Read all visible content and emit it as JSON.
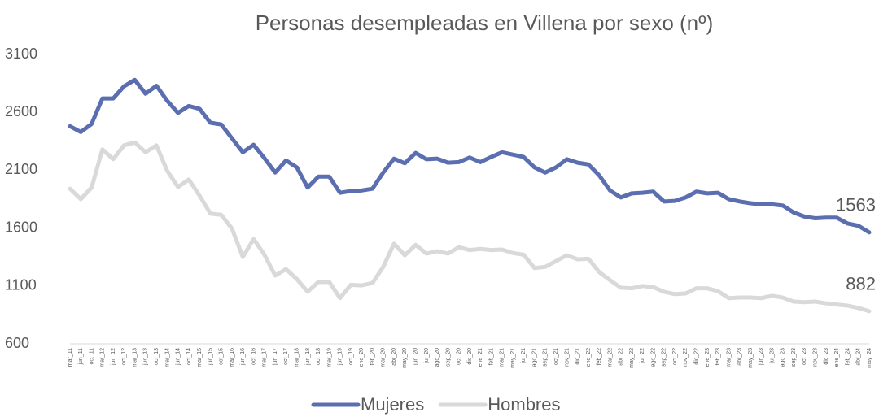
{
  "chart_data": {
    "type": "line",
    "title": "Personas desempleadas en Villena por sexo (nº)",
    "categories": [
      "mar_11",
      "jun_11",
      "oct_11",
      "mar_12",
      "jun_12",
      "oct_12",
      "mar_13",
      "jun_13",
      "oct_13",
      "mar_14",
      "jun_14",
      "oct_14",
      "mar_15",
      "jun_15",
      "oct_15",
      "mar_16",
      "jun_16",
      "oct_16",
      "mar_17",
      "jun_17",
      "oct_17",
      "mar_18",
      "jun_18",
      "oct_18",
      "mar_19",
      "jun_19",
      "oct_19",
      "ene_20",
      "feb_20",
      "mar_20",
      "abr_20",
      "may_20",
      "jun_20",
      "jul_20",
      "ago_20",
      "sep_20",
      "oct_20",
      "dic_20",
      "ene_21",
      "feb_21",
      "mar_21",
      "may_21",
      "jul_21",
      "ago_21",
      "sep_21",
      "oct_21",
      "nov_21",
      "dic_21",
      "ene_22",
      "feb_22",
      "mar_22",
      "abr_22",
      "may_22",
      "jul_22",
      "ago_22",
      "sep_22",
      "oct_22",
      "nov_22",
      "dic_22",
      "ene_23",
      "feb_23",
      "mar_23",
      "abr_23",
      "may_23",
      "jun_23",
      "jul_23",
      "ago_23",
      "sep_23",
      "oct_23",
      "nov_23",
      "dic_23",
      "ene_24",
      "feb_24",
      "abr_24",
      "may_24"
    ],
    "series": [
      {
        "name": "Mujeres",
        "color": "#5b6fb0",
        "values": [
          2480,
          2430,
          2500,
          2720,
          2720,
          2825,
          2880,
          2760,
          2830,
          2700,
          2595,
          2655,
          2630,
          2510,
          2495,
          2375,
          2255,
          2320,
          2205,
          2080,
          2185,
          2125,
          1950,
          2045,
          2045,
          1905,
          1920,
          1925,
          1940,
          2080,
          2200,
          2160,
          2250,
          2195,
          2200,
          2165,
          2170,
          2210,
          2170,
          2215,
          2255,
          2235,
          2215,
          2125,
          2080,
          2125,
          2195,
          2165,
          2150,
          2055,
          1925,
          1865,
          1900,
          1905,
          1915,
          1830,
          1835,
          1865,
          1915,
          1900,
          1905,
          1850,
          1830,
          1815,
          1805,
          1805,
          1795,
          1735,
          1700,
          1685,
          1690,
          1690,
          1640,
          1620,
          1563
        ]
      },
      {
        "name": "Hombres",
        "color": "#d9d9d9",
        "values": [
          1940,
          1850,
          1950,
          2280,
          2195,
          2315,
          2340,
          2255,
          2315,
          2095,
          1955,
          2020,
          1880,
          1725,
          1715,
          1595,
          1350,
          1505,
          1370,
          1190,
          1245,
          1160,
          1050,
          1135,
          1135,
          995,
          1110,
          1105,
          1125,
          1265,
          1465,
          1365,
          1455,
          1380,
          1400,
          1380,
          1435,
          1410,
          1420,
          1410,
          1415,
          1385,
          1370,
          1255,
          1265,
          1315,
          1365,
          1330,
          1335,
          1220,
          1150,
          1085,
          1080,
          1100,
          1090,
          1050,
          1030,
          1035,
          1080,
          1080,
          1055,
          995,
          1000,
          1000,
          995,
          1015,
          1000,
          965,
          960,
          965,
          950,
          940,
          930,
          910,
          882
        ]
      }
    ],
    "ylim": [
      600,
      3100
    ],
    "yticks": [
      600,
      1100,
      1600,
      2100,
      2600,
      3100
    ],
    "grid": false
  }
}
